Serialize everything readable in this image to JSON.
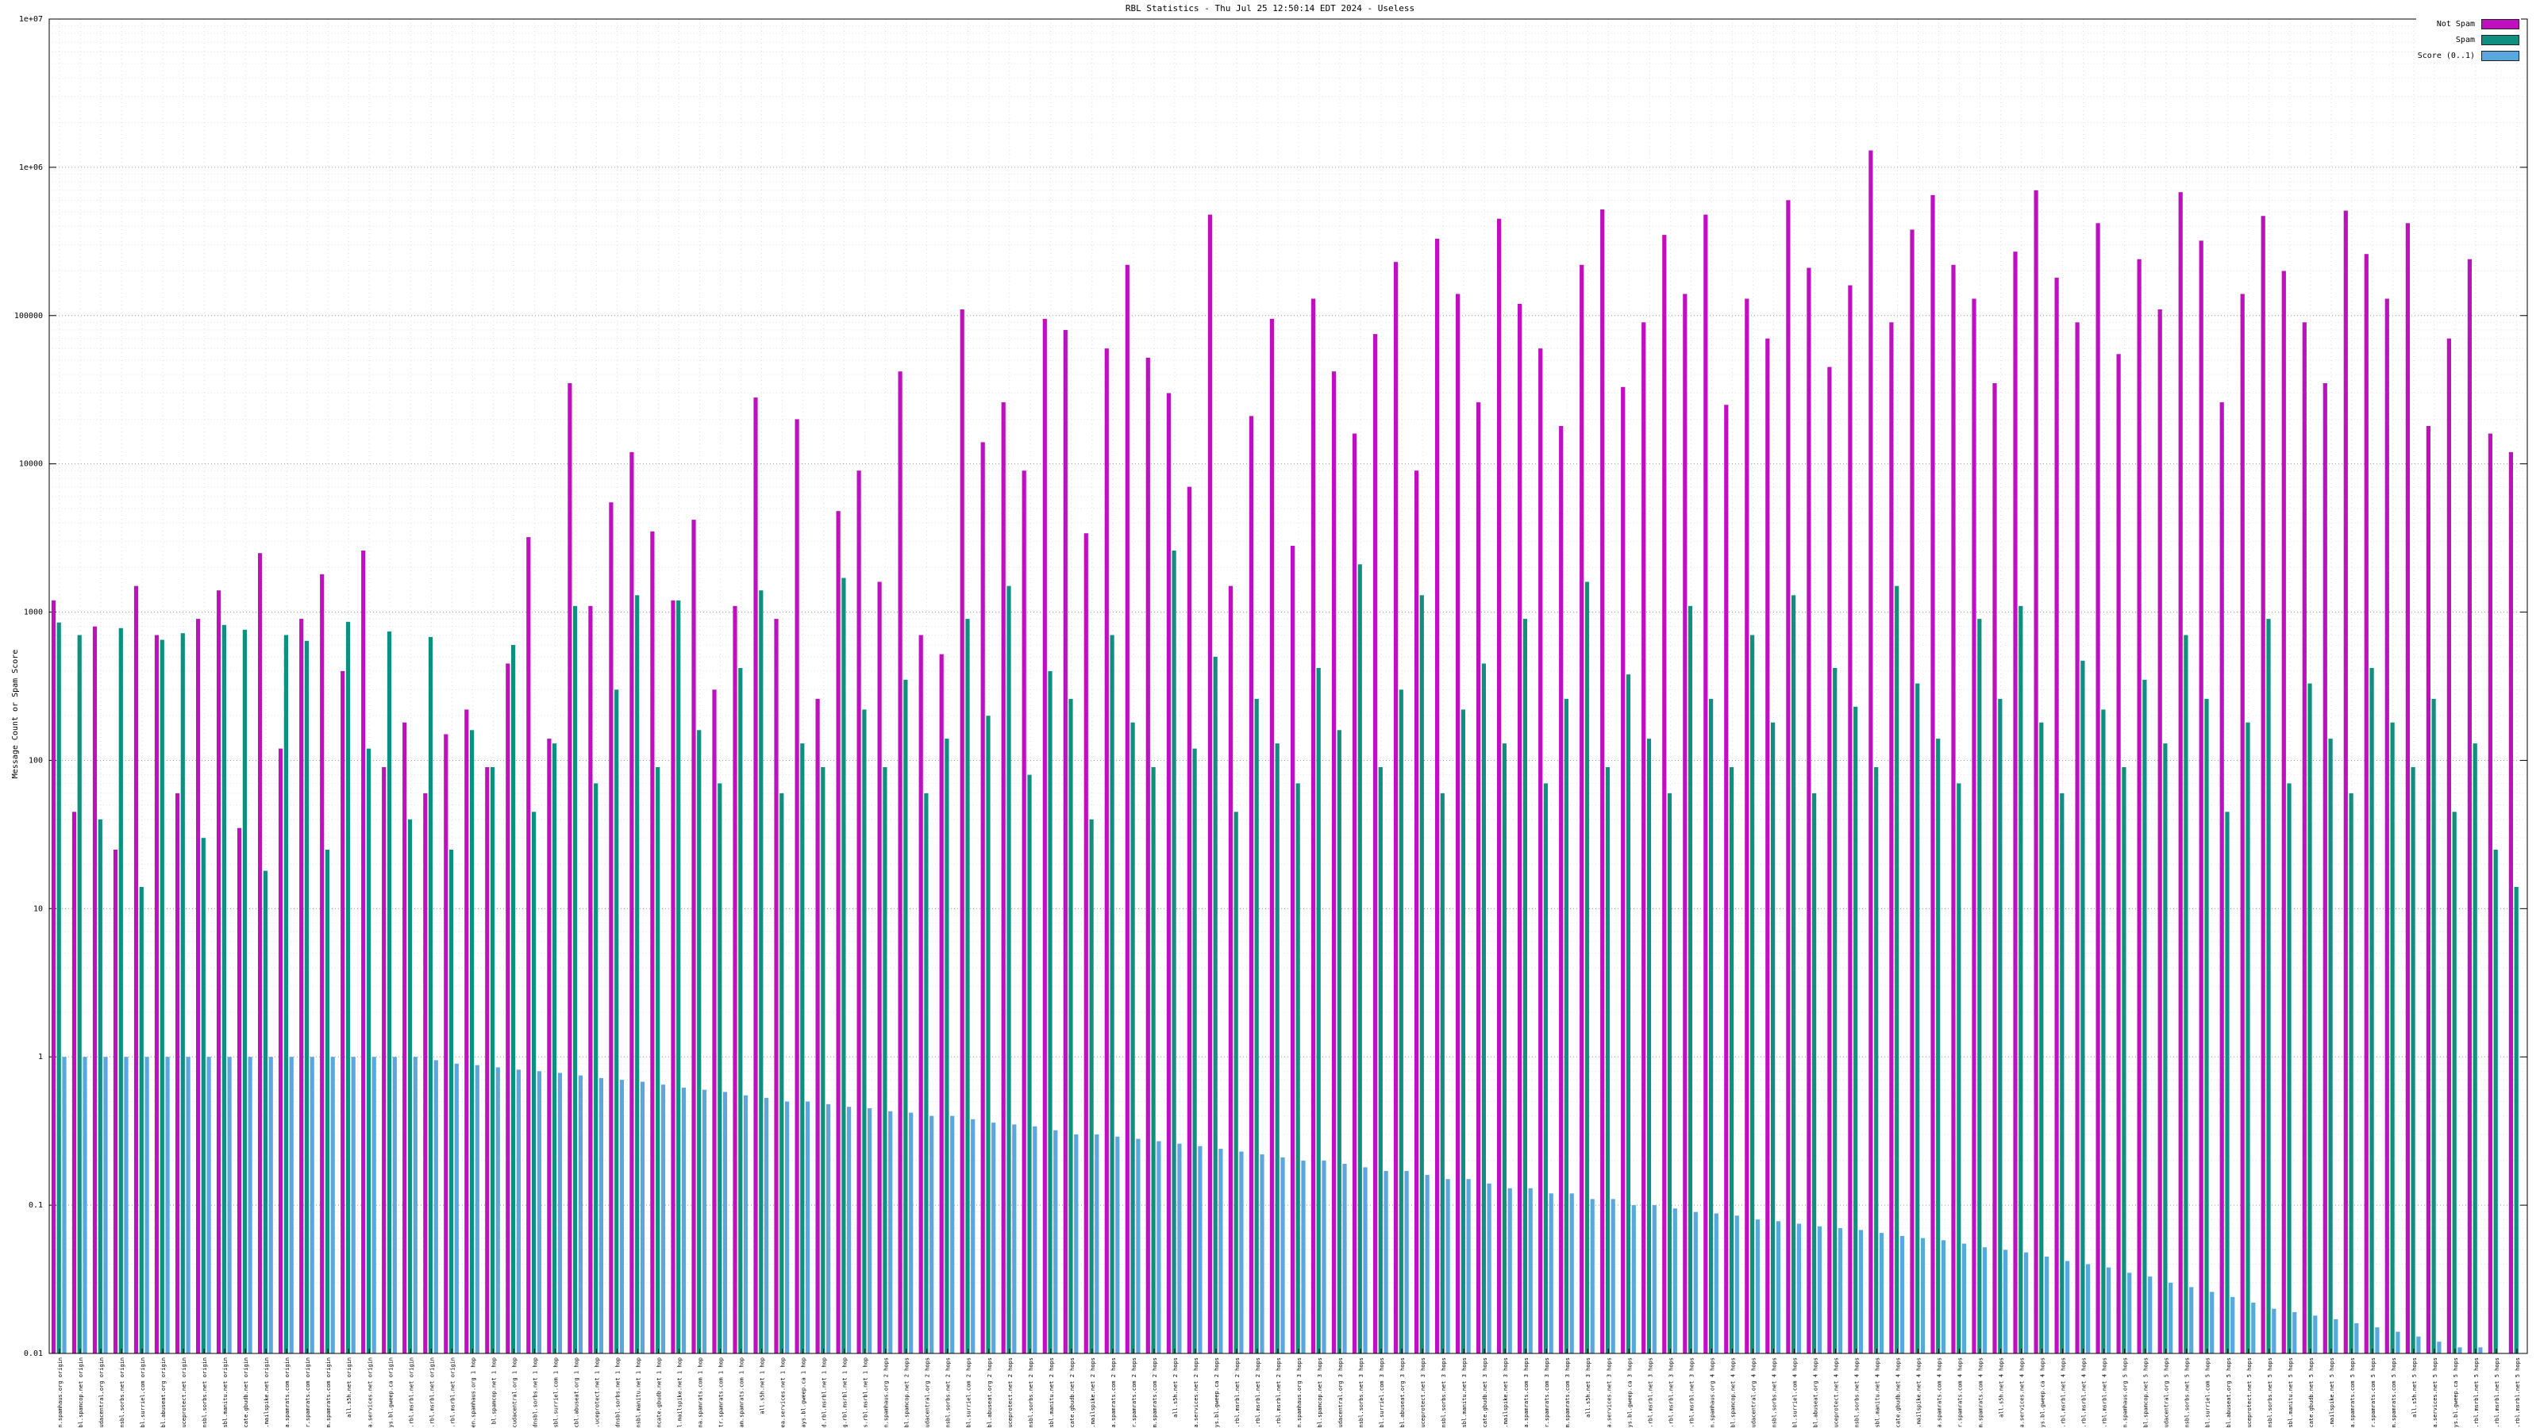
{
  "chart_data": {
    "type": "bar",
    "title": "RBL Statistics - Thu Jul 25 12:50:14 EDT 2024 - Useless",
    "xlabel": "",
    "ylabel": "Message Count or Spam Score",
    "yscale": "log",
    "ylim": [
      0.01,
      10000000
    ],
    "ytick_labels": [
      "0.01",
      "0.1",
      "1",
      "10",
      "100",
      "1000",
      "10000",
      "100000",
      "1e+06",
      "1e+07"
    ],
    "grid": true,
    "legend_position": "top-right",
    "categories": [
      "zen.spamhaus.org origin",
      "bl.spamcop.net origin",
      "b.barracudacentral.org origin",
      "dnsbl.sorbs.net origin",
      "psbl.surriel.com origin",
      "cbl.abuseat.org origin",
      "dnsbl-1.uceprotect.net origin",
      "spam.dnsbl.sorbs.net origin",
      "ix.dnsbl.manitu.net origin",
      "truncate.gbudb.net origin",
      "bl.mailspike.net origin",
      "dyna.spamrats.com origin",
      "noptr.spamrats.com origin",
      "spam.spamrats.com origin",
      "all.s5h.net origin",
      "korea.services.net origin",
      "relays.bl.gweep.ca origin",
      "combined.rbl.msrbl.net origin",
      "phishing.rbl.msrbl.net origin",
      "virus.rbl.msrbl.net origin",
      "zen.spamhaus.org 1 hop",
      "bl.spamcop.net 1 hop",
      "b.barracudacentral.org 1 hop",
      "dnsbl.sorbs.net 1 hop",
      "psbl.surriel.com 1 hop",
      "cbl.abuseat.org 1 hop",
      "dnsbl-1.uceprotect.net 1 hop",
      "spam.dnsbl.sorbs.net 1 hop",
      "ix.dnsbl.manitu.net 1 hop",
      "truncate.gbudb.net 1 hop",
      "bl.mailspike.net 1 hop",
      "dyna.spamrats.com 1 hop",
      "noptr.spamrats.com 1 hop",
      "spam.spamrats.com 1 hop",
      "all.s5h.net 1 hop",
      "korea.services.net 1 hop",
      "relays.bl.gweep.ca 1 hop",
      "combined.rbl.msrbl.net 1 hop",
      "phishing.rbl.msrbl.net 1 hop",
      "virus.rbl.msrbl.net 1 hop",
      "zen.spamhaus.org 2 hops",
      "bl.spamcop.net 2 hops",
      "b.barracudacentral.org 2 hops",
      "dnsbl.sorbs.net 2 hops",
      "psbl.surriel.com 2 hops",
      "cbl.abuseat.org 2 hops",
      "dnsbl-1.uceprotect.net 2 hops",
      "spam.dnsbl.sorbs.net 2 hops",
      "ix.dnsbl.manitu.net 2 hops",
      "truncate.gbudb.net 2 hops",
      "bl.mailspike.net 2 hops",
      "dyna.spamrats.com 2 hops",
      "noptr.spamrats.com 2 hops",
      "spam.spamrats.com 2 hops",
      "all.s5h.net 2 hops",
      "korea.services.net 2 hops",
      "relays.bl.gweep.ca 2 hops",
      "combined.rbl.msrbl.net 2 hops",
      "phishing.rbl.msrbl.net 2 hops",
      "virus.rbl.msrbl.net 2 hops",
      "zen.spamhaus.org 3 hops",
      "bl.spamcop.net 3 hops",
      "b.barracudacentral.org 3 hops",
      "dnsbl.sorbs.net 3 hops",
      "psbl.surriel.com 3 hops",
      "cbl.abuseat.org 3 hops",
      "dnsbl-1.uceprotect.net 3 hops",
      "spam.dnsbl.sorbs.net 3 hops",
      "ix.dnsbl.manitu.net 3 hops",
      "truncate.gbudb.net 3 hops",
      "bl.mailspike.net 3 hops",
      "dyna.spamrats.com 3 hops",
      "noptr.spamrats.com 3 hops",
      "spam.spamrats.com 3 hops",
      "all.s5h.net 3 hops",
      "korea.services.net 3 hops",
      "relays.bl.gweep.ca 3 hops",
      "combined.rbl.msrbl.net 3 hops",
      "phishing.rbl.msrbl.net 3 hops",
      "virus.rbl.msrbl.net 3 hops",
      "zen.spamhaus.org 4 hops",
      "bl.spamcop.net 4 hops",
      "b.barracudacentral.org 4 hops",
      "dnsbl.sorbs.net 4 hops",
      "psbl.surriel.com 4 hops",
      "cbl.abuseat.org 4 hops",
      "dnsbl-1.uceprotect.net 4 hops",
      "spam.dnsbl.sorbs.net 4 hops",
      "ix.dnsbl.manitu.net 4 hops",
      "truncate.gbudb.net 4 hops",
      "bl.mailspike.net 4 hops",
      "dyna.spamrats.com 4 hops",
      "noptr.spamrats.com 4 hops",
      "spam.spamrats.com 4 hops",
      "all.s5h.net 4 hops",
      "korea.services.net 4 hops",
      "relays.bl.gweep.ca 4 hops",
      "combined.rbl.msrbl.net 4 hops",
      "phishing.rbl.msrbl.net 4 hops",
      "virus.rbl.msrbl.net 4 hops",
      "zen.spamhaus.org 5 hops",
      "bl.spamcop.net 5 hops",
      "b.barracudacentral.org 5 hops",
      "dnsbl.sorbs.net 5 hops",
      "psbl.surriel.com 5 hops",
      "cbl.abuseat.org 5 hops",
      "dnsbl-1.uceprotect.net 5 hops",
      "spam.dnsbl.sorbs.net 5 hops",
      "ix.dnsbl.manitu.net 5 hops",
      "truncate.gbudb.net 5 hops",
      "bl.mailspike.net 5 hops",
      "dyna.spamrats.com 5 hops",
      "noptr.spamrats.com 5 hops",
      "spam.spamrats.com 5 hops",
      "all.s5h.net 5 hops",
      "korea.services.net 5 hops",
      "relays.bl.gweep.ca 5 hops",
      "combined.rbl.msrbl.net 5 hops",
      "phishing.rbl.msrbl.net 5 hops",
      "virus.rbl.msrbl.net 5 hops"
    ],
    "series": [
      {
        "name": "Not Spam",
        "color": "#bf10bf",
        "values": [
          1200,
          45,
          800,
          25,
          1500,
          700,
          60,
          900,
          1400,
          35,
          2500,
          120,
          900,
          1800,
          400,
          2600,
          90,
          180,
          60,
          150,
          220,
          90,
          450,
          3200,
          140,
          35000,
          1100,
          5500,
          12000,
          3500,
          1200,
          4200,
          300,
          1100,
          28000,
          900,
          20000,
          260,
          4800,
          9000,
          1600,
          42000,
          700,
          520,
          110000,
          14000,
          26000,
          9000,
          95000,
          80000,
          3400,
          60000,
          220000,
          52000,
          30000,
          7000,
          480000,
          1500,
          21000,
          95000,
          2800,
          130000,
          42000,
          16000,
          75000,
          230000,
          9000,
          330000,
          140000,
          26000,
          450000,
          120000,
          60000,
          18000,
          220000,
          520000,
          33000,
          90000,
          350000,
          140000,
          480000,
          25000,
          130000,
          70000,
          600000,
          210000,
          45000,
          160000,
          1300000,
          90000,
          380000,
          650000,
          220000,
          130000,
          35000,
          270000,
          700000,
          180000,
          90000,
          420000,
          55000,
          240000,
          110000,
          680000,
          320000,
          26000,
          140000,
          470000,
          200000,
          90000,
          35000,
          510000,
          260000,
          130000,
          420000,
          18000,
          70000,
          240000,
          16000,
          12000
        ]
      },
      {
        "name": "Spam",
        "color": "#0f8f7f",
        "values": [
          850,
          700,
          40,
          780,
          14,
          650,
          720,
          30,
          820,
          760,
          18,
          700,
          640,
          25,
          860,
          120,
          740,
          40,
          680,
          25,
          160,
          90,
          600,
          45,
          130,
          1100,
          70,
          300,
          1300,
          90,
          1200,
          160,
          70,
          420,
          1400,
          60,
          130,
          90,
          1700,
          220,
          90,
          350,
          60,
          140,
          900,
          200,
          1500,
          80,
          400,
          260,
          40,
          700,
          180,
          90,
          2600,
          120,
          500,
          45,
          260,
          130,
          70,
          420,
          160,
          2100,
          90,
          300,
          1300,
          60,
          220,
          450,
          130,
          900,
          70,
          260,
          1600,
          90,
          380,
          140,
          60,
          1100,
          260,
          90,
          700,
          180,
          1300,
          60,
          420,
          230,
          90,
          1500,
          330,
          140,
          70,
          900,
          260,
          1100,
          180,
          60,
          470,
          220,
          90,
          350,
          130,
          700,
          260,
          45,
          180,
          900,
          70,
          330,
          140,
          60,
          420,
          180,
          90,
          260,
          45,
          130,
          25,
          14
        ]
      },
      {
        "name": "Score (0..1)",
        "color": "#5aa7dd",
        "values": [
          1,
          1,
          1,
          1,
          1,
          1,
          1,
          1,
          1,
          1,
          1,
          1,
          1,
          1,
          1,
          1,
          1,
          1,
          0.95,
          0.9,
          0.88,
          0.85,
          0.82,
          0.8,
          0.78,
          0.75,
          0.72,
          0.7,
          0.68,
          0.65,
          0.62,
          0.6,
          0.58,
          0.55,
          0.53,
          0.5,
          0.5,
          0.48,
          0.46,
          0.45,
          0.43,
          0.42,
          0.4,
          0.4,
          0.38,
          0.36,
          0.35,
          0.34,
          0.32,
          0.3,
          0.3,
          0.29,
          0.28,
          0.27,
          0.26,
          0.25,
          0.24,
          0.23,
          0.22,
          0.21,
          0.2,
          0.2,
          0.19,
          0.18,
          0.17,
          0.17,
          0.16,
          0.15,
          0.15,
          0.14,
          0.13,
          0.13,
          0.12,
          0.12,
          0.11,
          0.11,
          0.1,
          0.1,
          0.095,
          0.09,
          0.088,
          0.085,
          0.08,
          0.078,
          0.075,
          0.072,
          0.07,
          0.068,
          0.065,
          0.062,
          0.06,
          0.058,
          0.055,
          0.052,
          0.05,
          0.048,
          0.045,
          0.042,
          0.04,
          0.038,
          0.035,
          0.033,
          0.03,
          0.028,
          0.026,
          0.024,
          0.022,
          0.02,
          0.019,
          0.018,
          0.017,
          0.016,
          0.015,
          0.014,
          0.013,
          0.012,
          0.011,
          0.011,
          0.01,
          0.01
        ]
      }
    ]
  }
}
